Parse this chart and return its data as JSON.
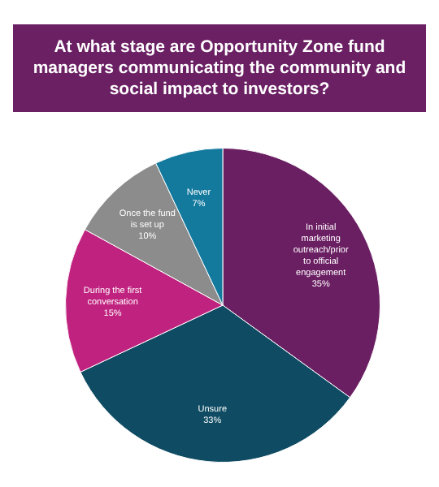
{
  "chart_data": {
    "type": "pie",
    "title": "At what stage are Opportunity Zone fund managers communicating the community and social impact to investors?",
    "categories": [
      "In initial marketing outreach/prior to official engagement",
      "Unsure",
      "During the first conversation",
      "Once the fund is set up",
      "Never"
    ],
    "values": [
      35,
      33,
      15,
      10,
      7
    ],
    "value_labels": [
      "35%",
      "33%",
      "15%",
      "10%",
      "7%"
    ],
    "colors": [
      "#6b1f63",
      "#0f4c63",
      "#c0237f",
      "#8c8c8c",
      "#137a9e"
    ],
    "legend": false
  }
}
